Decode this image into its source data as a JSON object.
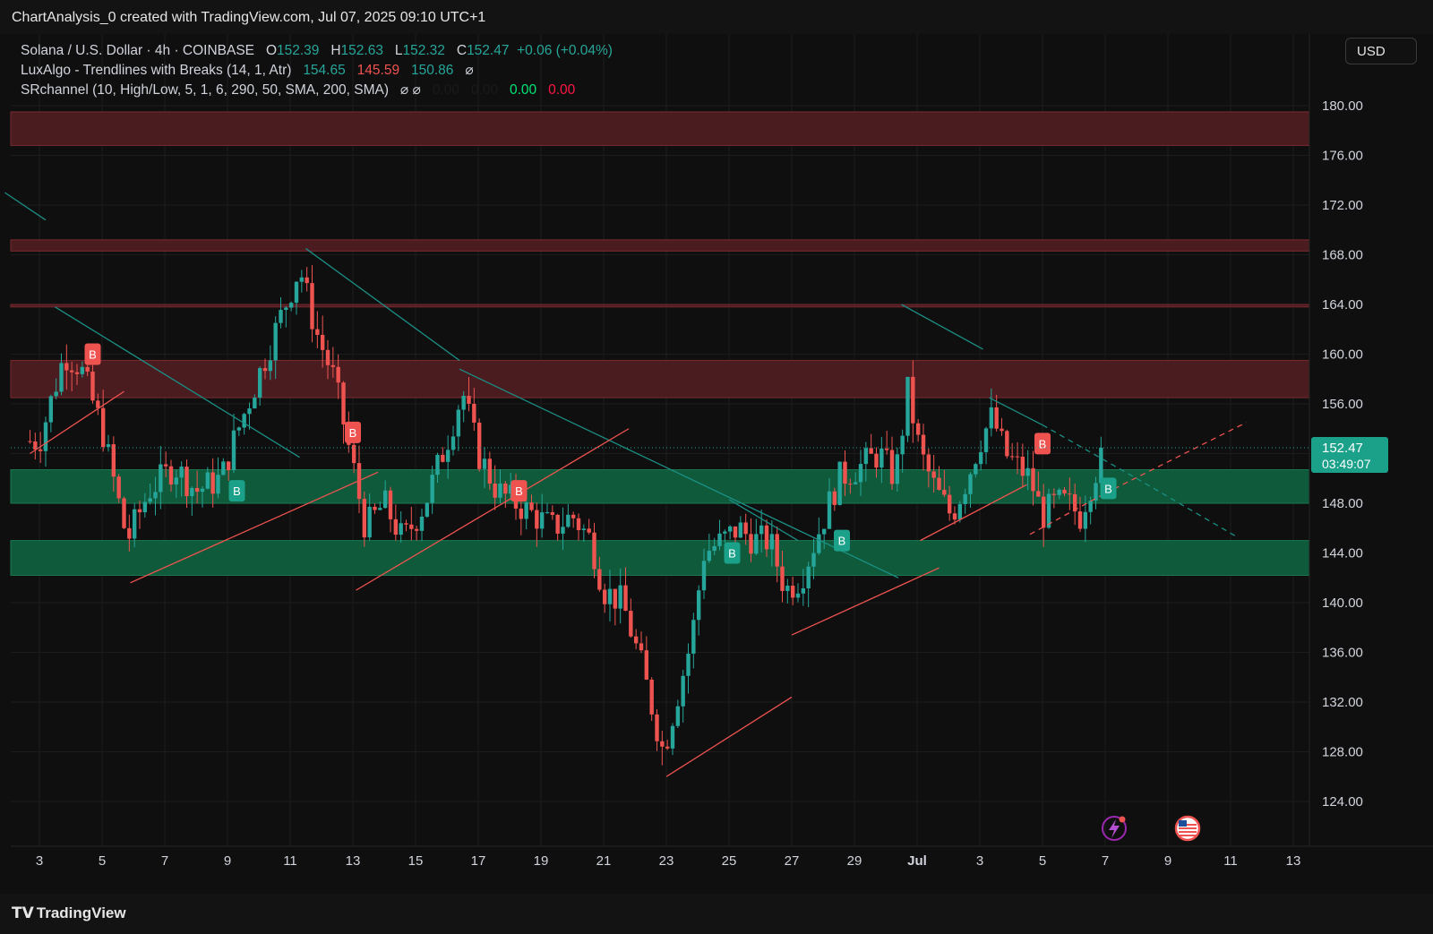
{
  "header": {
    "attribution": "ChartAnalysis_0 created with TradingView.com, Jul 07, 2025 09:10 UTC+1"
  },
  "legend": {
    "symbol": "Solana / U.S. Dollar · 4h · COINBASE",
    "o_label": "O",
    "o_value": "152.39",
    "h_label": "H",
    "h_value": "152.63",
    "l_label": "L",
    "l_value": "152.32",
    "c_label": "C",
    "c_value": "152.47",
    "change": "+0.06 (+0.04%)",
    "ind1_name": "LuxAlgo - Trendlines with Breaks (14, 1, Atr)",
    "ind1_v1": "154.65",
    "ind1_v2": "145.59",
    "ind1_v3": "150.86",
    "ind1_icon": "⌀",
    "ind2_name": "SRchannel (10, High/Low, 5, 1, 6, 290, 50, SMA, 200, SMA)",
    "ind2_icons": "⌀ ⌀",
    "ind2_v1": "0.00",
    "ind2_v2": "0.00",
    "ind2_v3": "0.00",
    "ind2_v4": "0.00"
  },
  "currency_button": "USD",
  "price_tag": {
    "price": "152.47",
    "countdown": "03:49:07"
  },
  "footer": {
    "brand": "TradingView",
    "brand_icon": "tradingview-logo-icon"
  },
  "colors": {
    "bull": "#26a69a",
    "bear": "#ef5350",
    "resistance_zone": "#4a1c20",
    "support_zone": "#0e5a3a",
    "tag_bg": "#1ba08a"
  },
  "chart_data": {
    "type": "candlestick",
    "title": "Solana / U.S. Dollar · 4h · COINBASE",
    "x_ticks": [
      "3",
      "5",
      "7",
      "9",
      "11",
      "13",
      "15",
      "17",
      "19",
      "21",
      "23",
      "25",
      "27",
      "29",
      "Jul",
      "3",
      "5",
      "7",
      "9",
      "11",
      "13"
    ],
    "y_ticks": [
      "180.00",
      "176.00",
      "172.00",
      "168.00",
      "164.00",
      "160.00",
      "156.00",
      "152.00",
      "148.00",
      "144.00",
      "140.00",
      "136.00",
      "132.00",
      "128.00",
      "124.00"
    ],
    "ylim": [
      120.5,
      182.5
    ],
    "grid": true,
    "last_price": 152.47,
    "price_path": [
      [
        3.0,
        153
      ],
      [
        3.8,
        160
      ],
      [
        4.3,
        159
      ],
      [
        5.0,
        154
      ],
      [
        5.8,
        145
      ],
      [
        6.5,
        149
      ],
      [
        7.3,
        151
      ],
      [
        8.0,
        149
      ],
      [
        8.8,
        150
      ],
      [
        9.2,
        153
      ],
      [
        9.8,
        157
      ],
      [
        10.4,
        161
      ],
      [
        11.3,
        167
      ],
      [
        11.8,
        162
      ],
      [
        12.4,
        158
      ],
      [
        13.0,
        151
      ],
      [
        13.4,
        146
      ],
      [
        14.0,
        148
      ],
      [
        14.6,
        145
      ],
      [
        15.3,
        148
      ],
      [
        16.0,
        153
      ],
      [
        16.5,
        157
      ],
      [
        17.0,
        152
      ],
      [
        17.6,
        149
      ],
      [
        18.2,
        148
      ],
      [
        18.8,
        147
      ],
      [
        19.4,
        146
      ],
      [
        20.0,
        147
      ],
      [
        20.6,
        145
      ],
      [
        21.0,
        141
      ],
      [
        21.6,
        140
      ],
      [
        22.2,
        135
      ],
      [
        22.6,
        131
      ],
      [
        22.9,
        128
      ],
      [
        23.3,
        132
      ],
      [
        23.8,
        137
      ],
      [
        24.2,
        144
      ],
      [
        24.8,
        145
      ],
      [
        25.3,
        146
      ],
      [
        25.8,
        145
      ],
      [
        26.3,
        145
      ],
      [
        26.8,
        141
      ],
      [
        27.3,
        142
      ],
      [
        27.9,
        146
      ],
      [
        28.5,
        150
      ],
      [
        29.2,
        151
      ],
      [
        29.8,
        152
      ],
      [
        30.3,
        150
      ],
      [
        30.7,
        157
      ],
      [
        31.1,
        152
      ],
      [
        31.6,
        149
      ],
      [
        32.1,
        147
      ],
      [
        32.6,
        150
      ],
      [
        33.0,
        153
      ],
      [
        33.4,
        155
      ],
      [
        33.8,
        152
      ],
      [
        34.2,
        151
      ],
      [
        34.6,
        150
      ],
      [
        35.0,
        147
      ],
      [
        35.4,
        148
      ],
      [
        35.8,
        148
      ],
      [
        36.2,
        147
      ],
      [
        36.6,
        150
      ],
      [
        37.0,
        152.47
      ]
    ],
    "resistance_zones": [
      [
        176.8,
        179.5
      ],
      [
        168.3,
        169.2
      ],
      [
        163.8,
        164.0
      ],
      [
        156.5,
        159.5
      ]
    ],
    "support_zones": [
      [
        148.0,
        150.7
      ],
      [
        142.2,
        145.0
      ]
    ],
    "break_labels": [
      {
        "label": "B",
        "type": "bearish"
      },
      {
        "label": "B",
        "type": "bullish"
      },
      {
        "label": "B",
        "type": "bearish"
      },
      {
        "label": "B",
        "type": "bearish"
      },
      {
        "label": "B",
        "type": "bullish"
      },
      {
        "label": "B",
        "type": "bullish"
      },
      {
        "label": "B",
        "type": "bearish"
      },
      {
        "label": "B",
        "type": "bullish"
      }
    ],
    "event_icons": [
      "lightning-icon",
      "us-flag-icon"
    ]
  }
}
